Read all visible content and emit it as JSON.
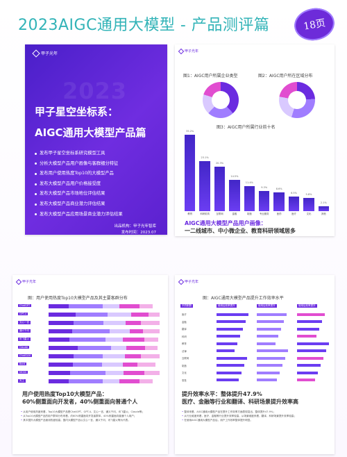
{
  "title": "2023AIGC通用大模型 - 产品测评篇",
  "badge": "18页",
  "cover": {
    "logo": "甲子光年",
    "year": "2023",
    "heading1": "甲子星空坐标系：",
    "heading2": "AIGC通用大模型产品篇",
    "bullets": [
      "发布甲子星空坐标系研究模型工具",
      "分析大模型产品用户画像与客群细分特征",
      "发布用户使用热度Top10的大模型产品",
      "发布大模型产品用户价格接受度",
      "发布大模型产品市场地位评估结果",
      "发布大模型产品商业潜力评估结果",
      "发布大模型产品应用场景商业潜力评估结果"
    ],
    "publisher": "出品机构：甲子光年智库",
    "date": "发布时间：2023.07"
  },
  "panel_top_right": {
    "logo": "甲子光年",
    "chart1_caption": "图1：AIGC用户所属企业类型",
    "chart2_caption": "图2：AIGC用户所在区域分布",
    "chart3_caption": "图3：AIGC用户所属行业前十名",
    "bar_values": [
      "35.2%",
      "23.1%",
      "20.3%",
      "14.5%",
      "11.4%",
      "9.3%",
      "8.6%",
      "6.5%",
      "5.8%",
      "2.1%"
    ],
    "bar_labels": [
      "教育",
      "科研机构",
      "互联网",
      "金融",
      "制造",
      "专业服务",
      "医药",
      "医疗",
      "文化",
      "其他"
    ],
    "section_title_1": "AIGC通用大模型产品用户画像：",
    "section_title_2": "一二线城市、中小微企业、教育科研领域居多",
    "bullets": [
      "本次调研对象是使用过AIGC通用大模型产品至少5次及以上的用户（包含个人用户和开发者用户），调研对象有在线调研问卷填写及行业专家访谈。",
      "在用户所属企业类型来看，中小微型企业占比较高，合计超过50%，其次是大型企业；",
      "从用户所在区域分布来看，二线城市占比最高，其次是一线城市，占比约为24%，一二线城市用户居多；",
      "从用户所属行业分布来看，教育、科研机构、互联网、金融、制造、专业服务、医药、医疗、文化等行业为主。"
    ]
  },
  "panel_bottom_left": {
    "logo": "甲子光年",
    "caption": "图：用户使用热度Top10大模型产品及其主要客群分布",
    "rows": [
      "ChatGPT",
      "GPT-4",
      "文心一言",
      "通义千问",
      "讯飞星火",
      "Claude",
      "ChatGLM",
      "Bard",
      "MOSS",
      "天工"
    ],
    "section_title_1": "用户使用热度Top10大模型产品：",
    "section_title_2": "60%侧重面向开发者，40%侧重面向普通个人",
    "bullets": [
      "从用户使用热度来看，Top10大模型产品是ChatGPT、GPT-4、文心一言、通义千问、讯飞星火、Claude等；",
      "从Top10大模型产品的用户群体分布来看，约60%侧重面向开发者群体，40%侧重面向普通个人用户；",
      "其中国外大模型产品使用热度较高，国内大模型产品以文心一言、通义千问、讯飞星火等为代表。"
    ]
  },
  "panel_bottom_right": {
    "logo": "甲子光年",
    "caption": "图：AIGC通用大模型产品提升工作效率水平",
    "col_headers": [
      "不同职群",
      "使用后效率提升",
      "使用后效率提升",
      "使用后效率提升"
    ],
    "row_labels": [
      "医疗",
      "金融",
      "翻译",
      "科研",
      "教育",
      "法律",
      "互联网",
      "制造",
      "文化",
      "零售"
    ],
    "section_title_1": "提升效率水平：整体提升47.9%",
    "section_title_2": "医疗、金融等行业和翻译、科研场景提升效率高",
    "bullets": [
      "整体来看，AIGC通用大模型产品在提升工作效率方面表现突出，整体提升47.9%；",
      "从行业维度来看，医疗、金融等行业提升效率较高，从场景维度来看，翻译、科研场景提升效率较高；",
      "在使用AIGC通用大模型产品后，用户工作效率整体提升明显。"
    ]
  },
  "colors": {
    "title": "#31b3b7",
    "accent": "#6b2be0",
    "cover_bg": "#5b21cf"
  }
}
